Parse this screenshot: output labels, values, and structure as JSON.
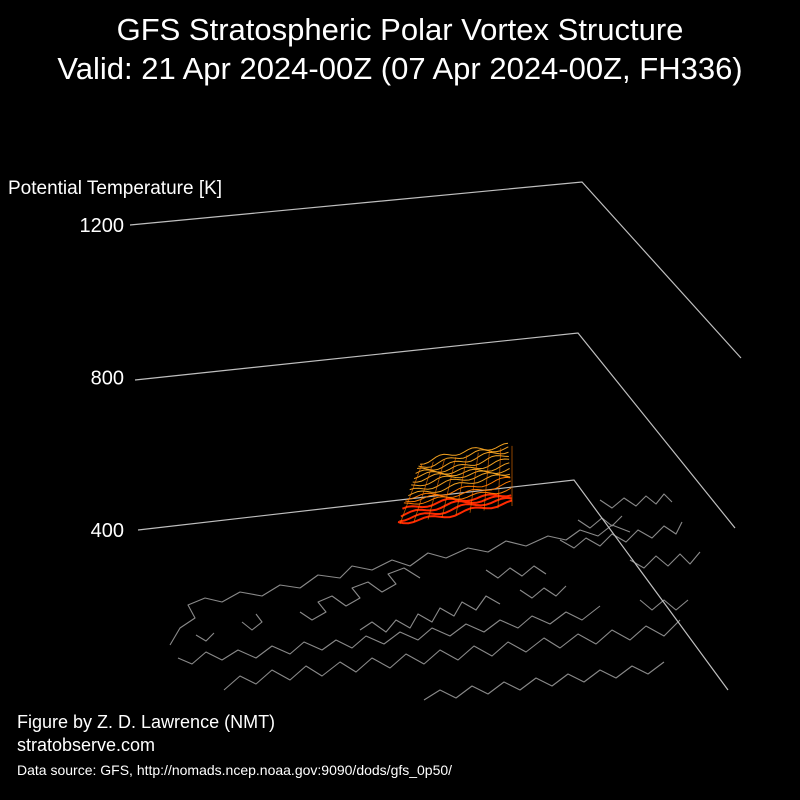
{
  "title": {
    "line1": "GFS Stratospheric Polar Vortex Structure",
    "line2": "Valid: 21 Apr 2024-00Z  (07 Apr 2024-00Z, FH336)"
  },
  "credits": {
    "author": "Figure by Z. D. Lawrence (NMT)",
    "site": "stratobserve.com",
    "source": "Data source: GFS, http://nomads.ncep.noaa.gov:9090/dods/gfs_0p50/"
  },
  "colors": {
    "background": "#000000",
    "text": "#ffffff",
    "axis": "#bfbfbf",
    "coastline": "#8a8a8a",
    "vortex_low": "#ff2a00",
    "vortex_mid": "#ff7a00",
    "vortex_high": "#f0a020"
  },
  "chart_data": {
    "type": "3d-isosurface",
    "zlabel": "Potential Temperature [K]",
    "z_ticks": [
      400,
      800,
      1200
    ],
    "zlim": [
      400,
      1200
    ],
    "basemap": "coastlines",
    "vortex_extent_K": [
      400,
      610
    ]
  }
}
